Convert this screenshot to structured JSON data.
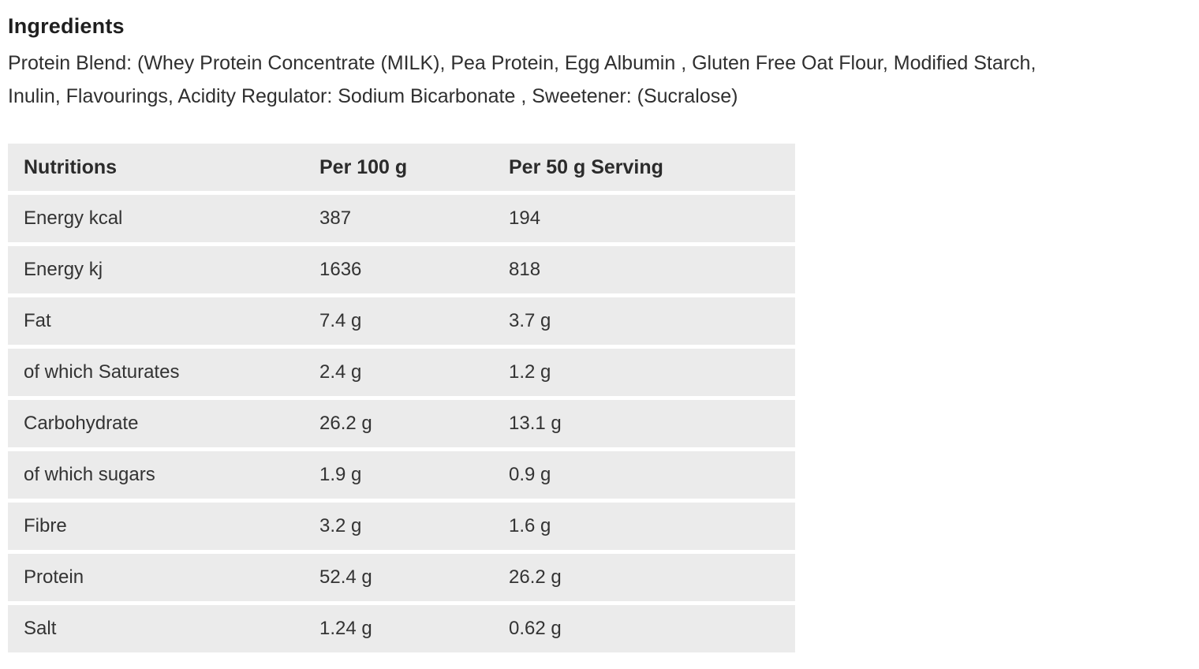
{
  "ingredients": {
    "heading": "Ingredients",
    "lines": [
      "Protein Blend: (Whey Protein Concentrate (MILK), Pea Protein, Egg Albumin , Gluten Free Oat Flour, Modified Starch,",
      "Inulin, Flavourings, Acidity Regulator: Sodium Bicarbonate , Sweetener: (Sucralose)"
    ]
  },
  "nutrition_table": {
    "headers": [
      "Nutritions",
      "Per 100 g",
      "Per 50 g Serving"
    ],
    "rows": [
      {
        "name": "Energy kcal",
        "per_100g": "387",
        "per_serving": "194"
      },
      {
        "name": "Energy kj",
        "per_100g": "1636",
        "per_serving": "818"
      },
      {
        "name": "Fat",
        "per_100g": "7.4 g",
        "per_serving": "3.7 g"
      },
      {
        "name": "of which Saturates",
        "per_100g": "2.4 g",
        "per_serving": "1.2 g"
      },
      {
        "name": "Carbohydrate",
        "per_100g": "26.2 g",
        "per_serving": "13.1 g"
      },
      {
        "name": "of which sugars",
        "per_100g": "1.9 g",
        "per_serving": "0.9 g"
      },
      {
        "name": "Fibre",
        "per_100g": "3.2 g",
        "per_serving": "1.6 g"
      },
      {
        "name": "Protein",
        "per_100g": "52.4 g",
        "per_serving": "26.2 g"
      },
      {
        "name": "Salt",
        "per_100g": "1.24 g",
        "per_serving": "0.62 g"
      }
    ]
  },
  "colors": {
    "row_background": "#ebebeb",
    "text": "#333333",
    "page_background": "#ffffff"
  }
}
